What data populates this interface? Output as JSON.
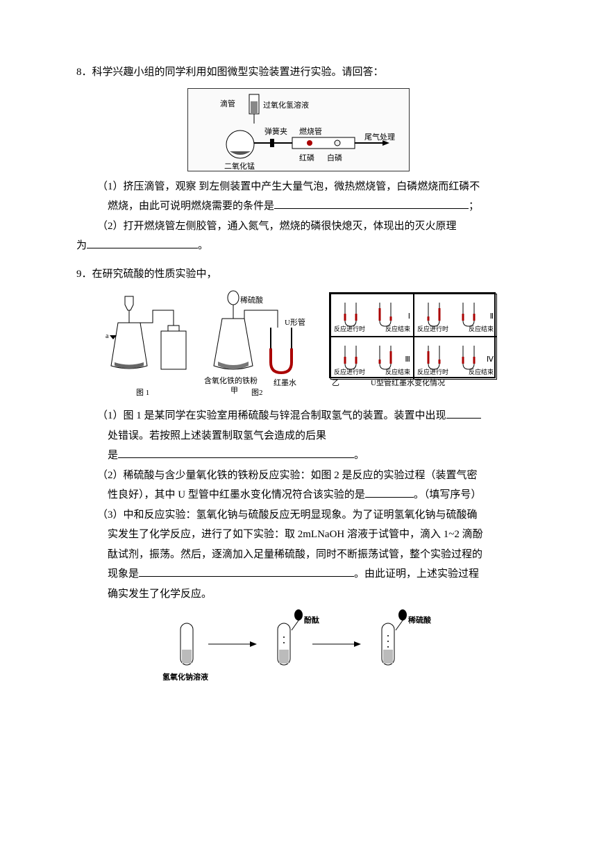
{
  "q8": {
    "number": "8．",
    "stem": "科学兴趣小组的同学利用如图微型实验装置进行实验。请回答：",
    "diagram": {
      "labels": {
        "dropper": "滴管",
        "h2o2": "过氧化氢溶液",
        "clip": "弹簧夹",
        "tube": "燃烧管",
        "tail": "尾气处理",
        "mno2": "二氧化锰",
        "redP": "红磷",
        "whiteP": "白磷"
      }
    },
    "p1_a": "（1）挤压滴管，观察 到左侧装置中产生大量气泡，微热燃烧管，白磷燃烧而红磷不",
    "p1_b": "燃烧，由此可说明燃烧需要的条件是",
    "p1_tail": "；",
    "p2_a": "（2）打开燃烧管左侧胶管，通入氮气，燃烧的磷很快熄灭，体现出的灭火原理",
    "p2_b": "为",
    "p2_tail": "。"
  },
  "q9": {
    "number": "9．",
    "stem": "在研究硫酸的性质实验中，",
    "diagram": {
      "fig1": "图 1",
      "fig2": "图2",
      "h2so4_d": "稀硫酸",
      "utube": "U形管",
      "jia": "甲",
      "fejar": "含氧化铁的铁粉",
      "ink": "红墨水",
      "yi": "乙",
      "grid_caption": "U型管红墨水变化情况",
      "cell_on": "反应进行时",
      "cell_end": "反应结束",
      "roman": [
        "Ⅰ",
        "Ⅱ",
        "Ⅲ",
        "Ⅳ"
      ]
    },
    "p1_a": "（1）图 1 是某同学在实验室用稀硫酸与锌混合制取氢气的装置。装置中出现",
    "p1_b": "处错误。若按照上述装置制取氢气会造成的后果",
    "p1_c": "是",
    "p1_tail": "。",
    "p2_a": "（2）稀硫酸与含少量氧化铁的铁粉反应实验：如图 2 是反应的实验过程（装置气密",
    "p2_b": "性良好），其中 U 型管中红墨水变化情况符合该实验的是",
    "p2_tail": "。（填写序号）",
    "p3_a": "（3）中和反应实验：氢氧化钠与硫酸反应无明显现象。为了证明氢氧化钠与硫酸确",
    "p3_b": "实发生了化学反应，进行了如下实验：取 2mLNaOH 溶液于试管中，滴入 1~2 滴酚",
    "p3_c": "酞试剂，振荡。然后，逐滴加入足量稀硫酸，同时不断振荡试管，整个实验过程的",
    "p3_d": "现象是",
    "p3_d_tail": "。由此证明，上述实验过程",
    "p3_e": "确实发生了化学反应。",
    "diagram3": {
      "naoh": "氢氧化钠溶液",
      "phen": "酚酞",
      "h2so4": "稀硫酸"
    }
  },
  "style": {
    "blank_medium": 280,
    "blank_long": 340,
    "blank_short": 80,
    "blank_small": 160
  }
}
